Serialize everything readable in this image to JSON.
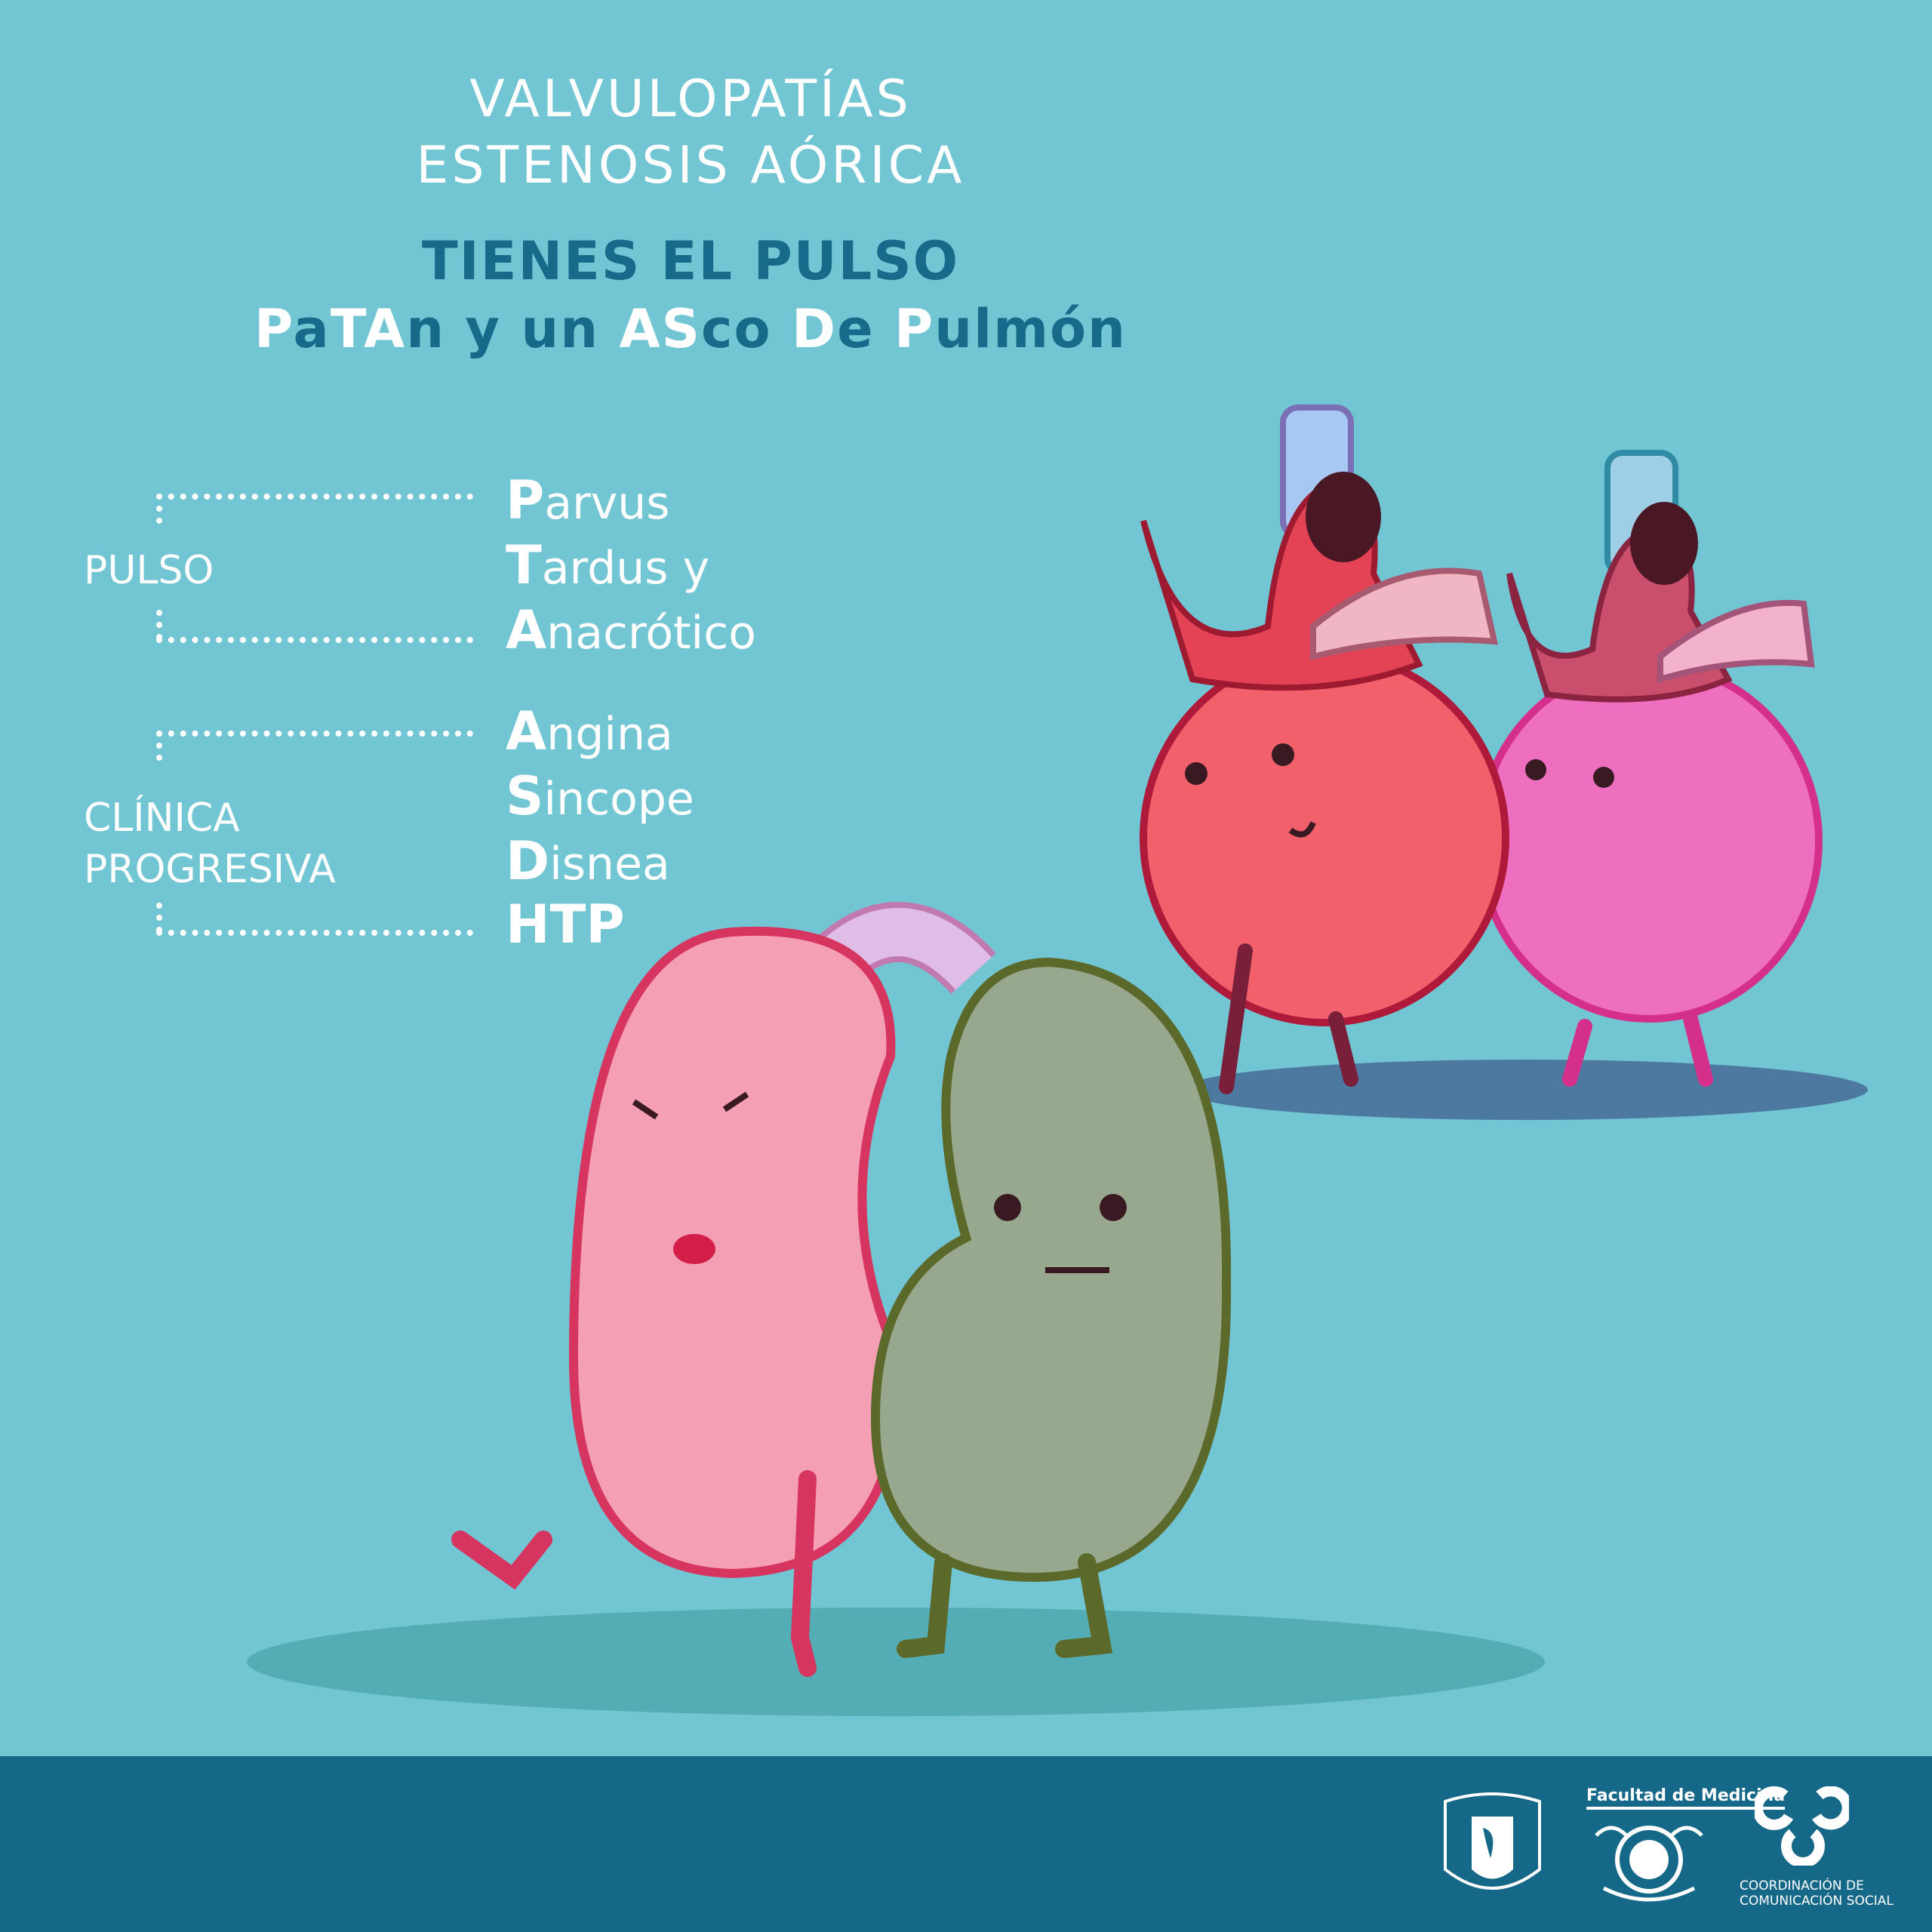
{
  "header": {
    "title_line1": "VALVULOPATÍAS",
    "title_line2": "ESTENOSIS AÓRICA",
    "subtitle": "TIENES EL PULSO",
    "mnemonic": [
      {
        "t": "P",
        "hl": true
      },
      {
        "t": "a",
        "hl": false
      },
      {
        "t": "TA",
        "hl": true
      },
      {
        "t": "n y un ",
        "hl": false
      },
      {
        "t": "AS",
        "hl": true
      },
      {
        "t": "co ",
        "hl": false
      },
      {
        "t": "D",
        "hl": true
      },
      {
        "t": "e ",
        "hl": false
      },
      {
        "t": "P",
        "hl": true
      },
      {
        "t": "ulmón",
        "hl": false
      }
    ]
  },
  "groups": [
    {
      "label": [
        "PULSO"
      ],
      "items": [
        {
          "initial": "P",
          "rest": "arvus"
        },
        {
          "initial": "T",
          "rest": "ardus y"
        },
        {
          "initial": "A",
          "rest": "nacrótico"
        }
      ]
    },
    {
      "label": [
        "CLÍNICA",
        "PROGRESIVA"
      ],
      "items": [
        {
          "initial": "A",
          "rest": "ngina"
        },
        {
          "initial": "S",
          "rest": "incope"
        },
        {
          "initial": "D",
          "rest": "isnea"
        },
        {
          "initial": "HTP",
          "rest": ""
        }
      ]
    }
  ],
  "footer": {
    "logos": [
      {
        "name": "unam-seal",
        "text": "UNIVERSIDAD NACIONAL AUTÓNOMA DE MÉXICO — POR MI RAZA HABLARÁ EL ESPÍRITU"
      },
      {
        "name": "facultad-medicina-seal",
        "caption": "Facultad de Medicina",
        "text": "UNAM Alis Volat"
      },
      {
        "name": "comunicacion-social-logo",
        "caption_line1": "COORDINACIÓN DE",
        "caption_line2": "COMUNICACIÓN SOCIAL"
      }
    ]
  },
  "colors": {
    "background": "#72c6d4",
    "accent_dark": "#176a8a",
    "footer": "#156888",
    "heart_red": "#f0606c",
    "heart_pink": "#ee6fc0",
    "kidney_pink": "#f59fb5",
    "lung_green": "#97a88e"
  }
}
